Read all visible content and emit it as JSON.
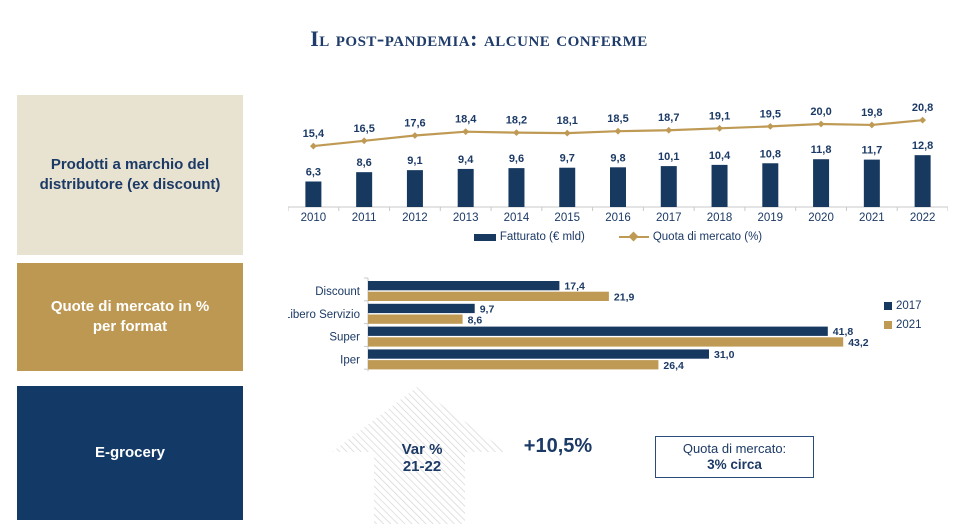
{
  "title": "Il post-pandemia: alcune conferme",
  "colors": {
    "navy": "#17395f",
    "gold": "#bf9a55",
    "beige": "#e8e2d0",
    "sidebar_navy": "#133a66",
    "text_navy": "#1c3a66",
    "axis_gray": "#c9c9c9",
    "hatch_gray": "#d4d4d4"
  },
  "sidebar": {
    "items": [
      {
        "id": "pl-products",
        "label": "Prodotti a marchio del\ndistributore (ex discount)",
        "bg": "#e8e2d0",
        "fg": "#1c3a66"
      },
      {
        "id": "market-share-format",
        "label": "Quote di mercato in %\nper format",
        "bg": "#bd9852",
        "fg": "#ffffff"
      },
      {
        "id": "e-grocery",
        "label": "E-grocery",
        "bg": "#133a66",
        "fg": "#ffffff"
      }
    ]
  },
  "chart_data": [
    {
      "id": "pl_combo",
      "type": "bar",
      "subtype": "combo-bar-line",
      "categories": [
        "2010",
        "2011",
        "2012",
        "2013",
        "2014",
        "2015",
        "2016",
        "2017",
        "2018",
        "2019",
        "2020",
        "2021",
        "2022"
      ],
      "series": [
        {
          "name": "Fatturato (€ mld)",
          "kind": "bar",
          "color": "#17395f",
          "values": [
            6.3,
            8.6,
            9.1,
            9.4,
            9.6,
            9.7,
            9.8,
            10.1,
            10.4,
            10.8,
            11.8,
            11.7,
            12.8
          ]
        },
        {
          "name": "Quota di mercato (%)",
          "kind": "line",
          "color": "#bf9a55",
          "values": [
            15.4,
            16.5,
            17.6,
            18.4,
            18.2,
            18.1,
            18.5,
            18.7,
            19.1,
            19.5,
            20.0,
            19.8,
            20.8
          ]
        }
      ],
      "legend_position": "bottom",
      "grid": false,
      "decimal_separator": ","
    },
    {
      "id": "format_share",
      "type": "bar",
      "orientation": "horizontal",
      "categories": [
        "Discount",
        "Libero Servizio",
        "Super",
        "Iper"
      ],
      "series": [
        {
          "name": "2017",
          "color": "#17395f",
          "values": [
            17.4,
            9.7,
            41.8,
            31.0
          ]
        },
        {
          "name": "2021",
          "color": "#bf9a55",
          "values": [
            21.9,
            8.6,
            43.2,
            26.4
          ]
        }
      ],
      "legend_position": "right",
      "grid": false,
      "xlim": [
        0,
        50
      ],
      "decimal_separator": ","
    }
  ],
  "e_grocery": {
    "arrow_label": "Var %\n21-22",
    "growth_value": "+10,5%",
    "note_line1": "Quota di mercato:",
    "note_line2": "3% circa"
  }
}
